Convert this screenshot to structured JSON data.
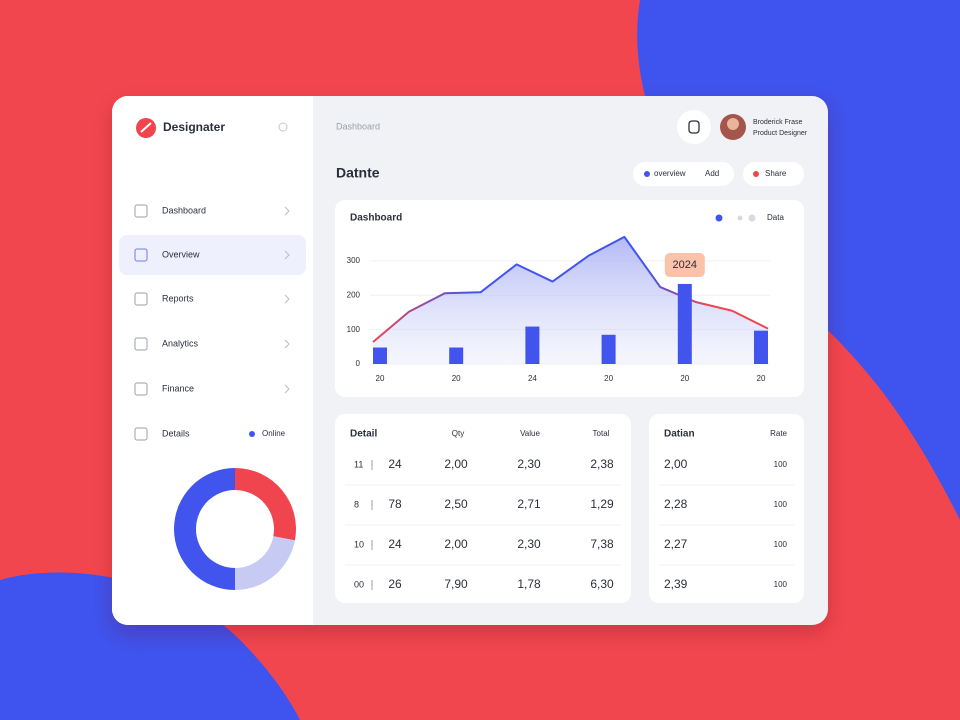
{
  "sidebar": {
    "brand": "Designater",
    "nav": [
      "Dashboard",
      "Overview",
      "Reports",
      "Analytics",
      "Finance",
      "Details"
    ],
    "nav_badge": "Online",
    "donut": {
      "values": [
        28,
        22,
        50
      ],
      "colors": [
        "#f0454f",
        "#c7cbf3",
        "#4155ee"
      ]
    }
  },
  "header": {
    "breadcrumb": "Dashboard",
    "user_name": "Broderick Frase",
    "user_role": "Product Designer"
  },
  "page_title": "Datnte",
  "filters": {
    "first": "overview",
    "first_extra": "Add",
    "second": "Share"
  },
  "chart": {
    "type": "line-bar",
    "title": "Dashboard",
    "legend_label": "Data",
    "annotation": "2024",
    "categories": [
      "20",
      "20",
      "24",
      "20",
      "20",
      "20"
    ],
    "bar_values": [
      48,
      48,
      109,
      85,
      233,
      97
    ],
    "bar_color": "#4155ee",
    "line_values": [
      64,
      152,
      206,
      209,
      290,
      240,
      315,
      370,
      224,
      180,
      155,
      103
    ],
    "line_colors": [
      "#f0454f",
      "#4155ee"
    ],
    "ylim": [
      0,
      390
    ],
    "yticks": [
      0,
      100,
      200,
      300
    ],
    "grid": true
  },
  "table": {
    "headers": [
      "Detail",
      "Qty",
      "Value",
      "Total"
    ],
    "rows": [
      [
        "11",
        "24",
        "2,00",
        "2,30",
        "2,38"
      ],
      [
        "8",
        "78",
        "2,50",
        "2,71",
        "1,29"
      ],
      [
        "10",
        "24",
        "2,00",
        "2,30",
        "7,38"
      ],
      [
        "00",
        "26",
        "7,90",
        "1,78",
        "6,30"
      ]
    ]
  },
  "side_table": {
    "headers": [
      "Datian",
      "Rate"
    ],
    "rows": [
      [
        "2,00",
        "100"
      ],
      [
        "2,28",
        "100"
      ],
      [
        "2,27",
        "100"
      ],
      [
        "2,39",
        "100"
      ]
    ]
  }
}
